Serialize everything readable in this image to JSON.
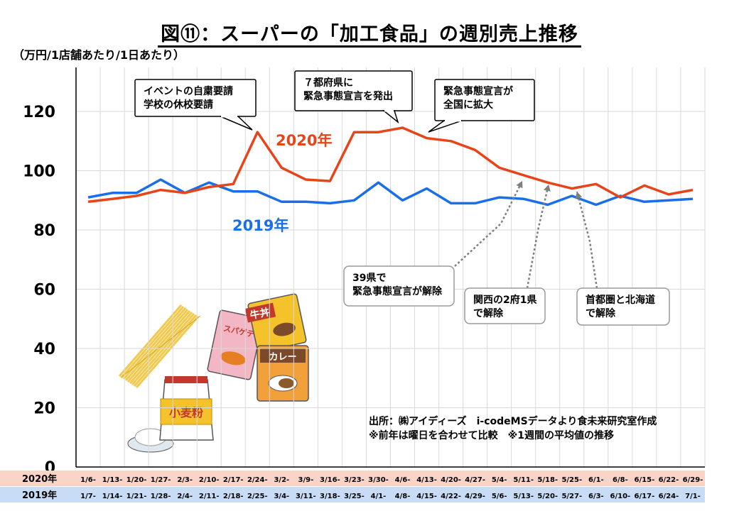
{
  "title": "図⑪：スーパーの「加工食品」の週別売上推移",
  "unit_label": "（万円/1店舗あたり/1日あたり）",
  "source_note": {
    "line1": "出所：㈱アイディーズ　i-codeMSデータより食未来研究室作成",
    "line2": "※前年は曜日を合わせて比較　※1週間の平均値の推移"
  },
  "row_labels": {
    "y2020": "2020年",
    "y2019": "2019年"
  },
  "colors": {
    "y2020": "#e8441a",
    "y2019": "#1a6ee8",
    "row2020_bg": "#fbd4c8",
    "row2019_bg": "#c8dcf6",
    "grid": "#d9d9d9",
    "callout_arrow": "#7f7f7f"
  },
  "callouts": [
    {
      "lines": [
        "イベントの自粛要請",
        "学校の休校要請"
      ]
    },
    {
      "lines": [
        "７都府県に",
        "緊急事態宣言を発出"
      ]
    },
    {
      "lines": [
        "緊急事態宣言が",
        "全国に拡大"
      ]
    },
    {
      "lines": [
        "39県で",
        "緊急事態宣言が解除"
      ]
    },
    {
      "lines": [
        "関西の2府1県",
        "で解除"
      ]
    },
    {
      "lines": [
        "首都圏と北海道",
        "で解除"
      ]
    }
  ],
  "illustration_labels": [
    "小麦粉",
    "スパゲティ",
    "牛丼",
    "カレー"
  ],
  "chart_data": {
    "type": "line",
    "ylim": [
      0,
      120
    ],
    "yticks": [
      0,
      20,
      40,
      60,
      80,
      100,
      120
    ],
    "grid": true,
    "categories_2020": [
      "1/6-",
      "1/13-",
      "1/20-",
      "1/27-",
      "2/3-",
      "2/10-",
      "2/17-",
      "2/24-",
      "3/2-",
      "3/9-",
      "3/16-",
      "3/23-",
      "3/30-",
      "4/6-",
      "4/13-",
      "4/20-",
      "4/27-",
      "5/4-",
      "5/11-",
      "5/18-",
      "5/25-",
      "6/1-",
      "6/8-",
      "6/15-",
      "6/22-",
      "6/29-"
    ],
    "categories_2019": [
      "1/7-",
      "1/14-",
      "1/21-",
      "1/28-",
      "2/4-",
      "2/11-",
      "2/18-",
      "2/25-",
      "3/4-",
      "3/11-",
      "3/18-",
      "3/25-",
      "4/1-",
      "4/8-",
      "4/15-",
      "4/22-",
      "4/29-",
      "5/6-",
      "5/13-",
      "5/20-",
      "5/27-",
      "6/3-",
      "6/10-",
      "6/17-",
      "6/24-",
      "7/1-"
    ],
    "series": [
      {
        "name": "2020年",
        "values": [
          89.5,
          90.5,
          91.5,
          93.5,
          92.5,
          94.5,
          95.5,
          113,
          101,
          97,
          96.5,
          113,
          113,
          114.5,
          111,
          110,
          107,
          101,
          98.5,
          96,
          94,
          95.5,
          91,
          95,
          92,
          93.5
        ]
      },
      {
        "name": "2019年",
        "values": [
          91,
          92.5,
          92.5,
          97,
          92.5,
          96,
          93,
          93,
          89.5,
          89.5,
          89,
          90,
          96,
          90,
          94,
          89,
          89,
          91,
          90.5,
          88.5,
          91.5,
          88.5,
          91.5,
          89.5,
          90,
          90.5
        ]
      }
    ]
  }
}
